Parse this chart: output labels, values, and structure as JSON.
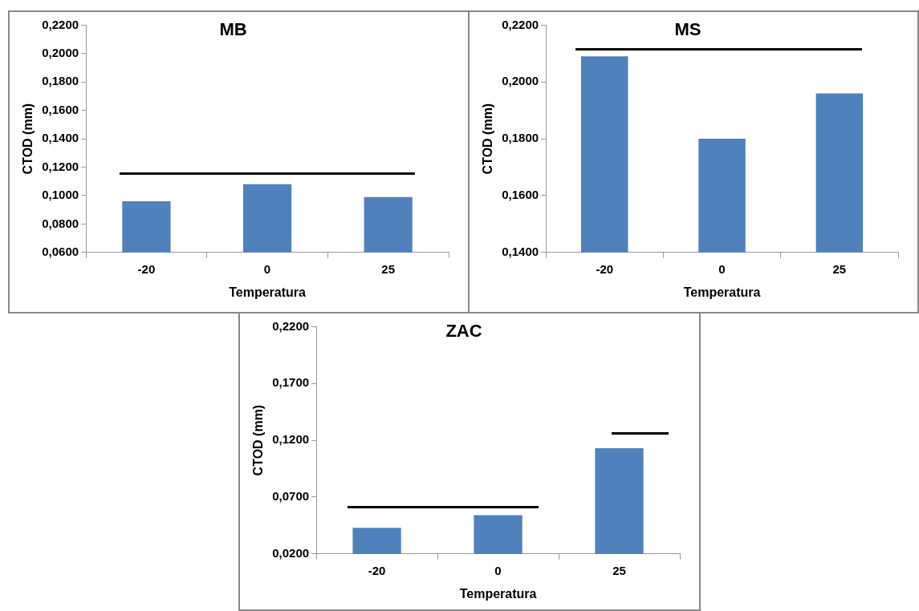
{
  "chart_data": [
    {
      "type": "bar",
      "title": "MB",
      "xlabel": "Temperatura",
      "ylabel": "CTOD (mm)",
      "categories": [
        "-20",
        "0",
        "25"
      ],
      "values": [
        0.096,
        0.108,
        0.099
      ],
      "color": "#4f81bd",
      "ylim": [
        0.06,
        0.22
      ],
      "yticks": [
        {
          "value": 0.06,
          "label": "0,0600"
        },
        {
          "value": 0.08,
          "label": "0,0800"
        },
        {
          "value": 0.1,
          "label": "0,1000"
        },
        {
          "value": 0.12,
          "label": "0,1200"
        },
        {
          "value": 0.14,
          "label": "0,1400"
        },
        {
          "value": 0.16,
          "label": "0,1600"
        },
        {
          "value": 0.18,
          "label": "0,1800"
        },
        {
          "value": 0.2,
          "label": "0,2000"
        },
        {
          "value": 0.22,
          "label": "0,2200"
        }
      ],
      "grid": false
    },
    {
      "type": "bar",
      "title": "MS",
      "xlabel": "Temperatura",
      "ylabel": "CTOD (mm)",
      "categories": [
        "-20",
        "0",
        "25"
      ],
      "values": [
        0.209,
        0.18,
        0.196
      ],
      "color": "#4f81bd",
      "ylim": [
        0.14,
        0.22
      ],
      "yticks": [
        {
          "value": 0.14,
          "label": "0,1400"
        },
        {
          "value": 0.16,
          "label": "0,1600"
        },
        {
          "value": 0.18,
          "label": "0,1800"
        },
        {
          "value": 0.2,
          "label": "0,2000"
        },
        {
          "value": 0.22,
          "label": "0,2200"
        }
      ],
      "grid": false
    },
    {
      "type": "bar",
      "title": "ZAC",
      "xlabel": "Temperatura",
      "ylabel": "CTOD (mm)",
      "categories": [
        "-20",
        "0",
        "25"
      ],
      "values": [
        0.043,
        0.054,
        0.113
      ],
      "color": "#4f81bd",
      "ylim": [
        0.02,
        0.22
      ],
      "yticks": [
        {
          "value": 0.02,
          "label": "0,0200"
        },
        {
          "value": 0.07,
          "label": "0,0700"
        },
        {
          "value": 0.12,
          "label": "0,1200"
        },
        {
          "value": 0.17,
          "label": "0,1700"
        },
        {
          "value": 0.22,
          "label": "0,2200"
        }
      ],
      "grid": false
    }
  ]
}
